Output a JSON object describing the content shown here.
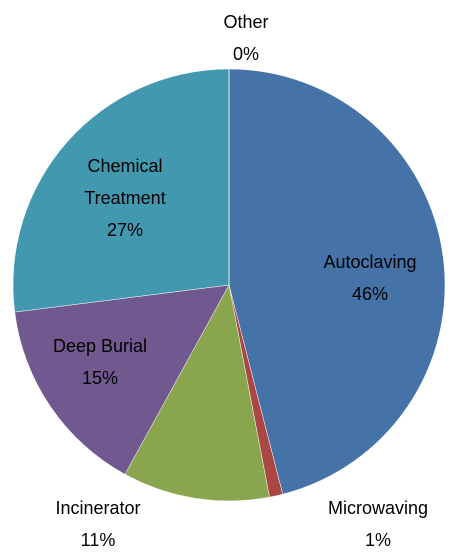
{
  "chart_data": {
    "type": "pie",
    "categories": [
      "Autoclaving",
      "Microwaving",
      "Incinerator",
      "Deep Burial",
      "Chemical Treatment",
      "Other"
    ],
    "values": [
      46,
      1,
      11,
      15,
      27,
      0
    ],
    "value_labels": [
      "46%",
      "1%",
      "11%",
      "15%",
      "27%",
      "0%"
    ],
    "colors": [
      "#4572a7",
      "#aa4643",
      "#89a54e",
      "#71588f",
      "#4198af",
      "#db843d"
    ]
  }
}
